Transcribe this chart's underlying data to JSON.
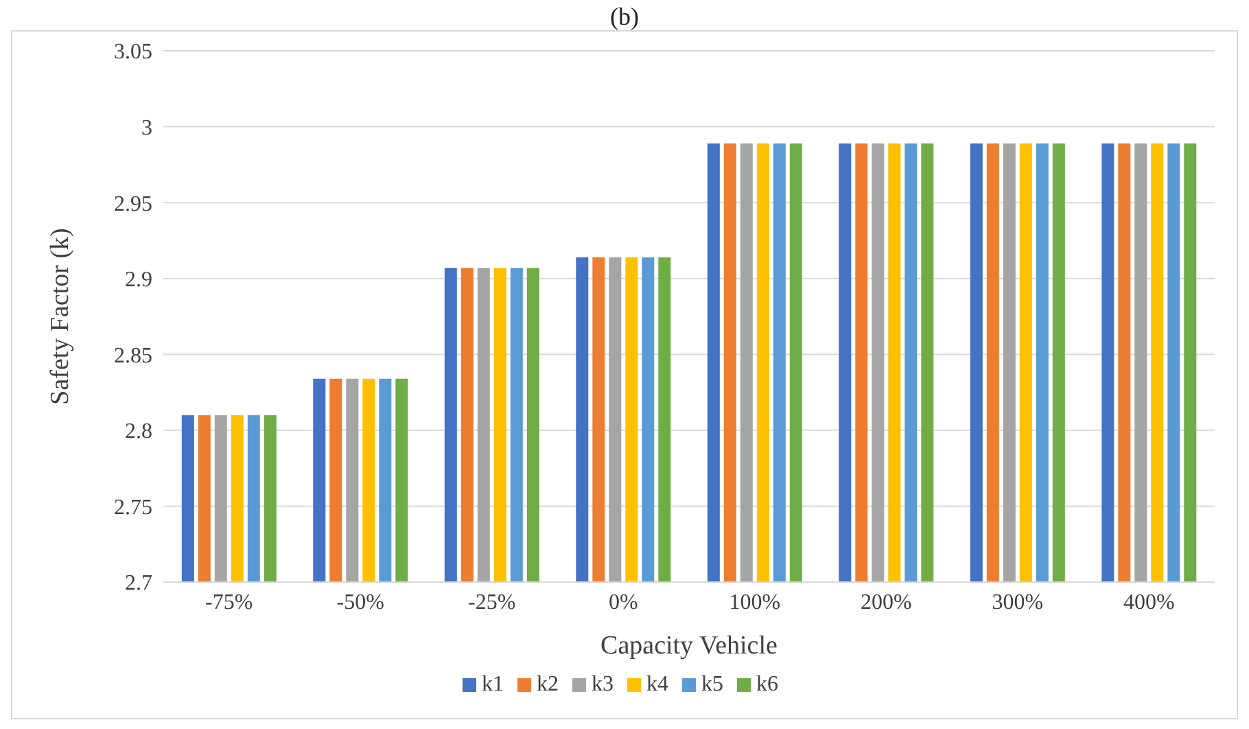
{
  "chart_data": {
    "type": "bar",
    "title": "(b)",
    "xlabel": "Capacity Vehicle",
    "ylabel": "Safety Factor (k)",
    "categories": [
      "-75%",
      "-50%",
      "-25%",
      "0%",
      "100%",
      "200%",
      "300%",
      "400%"
    ],
    "series": [
      {
        "name": "k1",
        "color": "#4472c4",
        "values": [
          2.81,
          2.834,
          2.907,
          2.914,
          2.989,
          2.989,
          2.989,
          2.989
        ]
      },
      {
        "name": "k2",
        "color": "#ed7d31",
        "values": [
          2.81,
          2.834,
          2.907,
          2.914,
          2.989,
          2.989,
          2.989,
          2.989
        ]
      },
      {
        "name": "k3",
        "color": "#a5a5a5",
        "values": [
          2.81,
          2.834,
          2.907,
          2.914,
          2.989,
          2.989,
          2.989,
          2.989
        ]
      },
      {
        "name": "k4",
        "color": "#ffc000",
        "values": [
          2.81,
          2.834,
          2.907,
          2.914,
          2.989,
          2.989,
          2.989,
          2.989
        ]
      },
      {
        "name": "k5",
        "color": "#5b9bd5",
        "values": [
          2.81,
          2.834,
          2.907,
          2.914,
          2.989,
          2.989,
          2.989,
          2.989
        ]
      },
      {
        "name": "k6",
        "color": "#70ad47",
        "values": [
          2.81,
          2.834,
          2.907,
          2.914,
          2.989,
          2.989,
          2.989,
          2.989
        ]
      }
    ],
    "ylim": [
      2.7,
      3.05
    ],
    "yticks": [
      2.7,
      2.75,
      2.8,
      2.85,
      2.9,
      2.95,
      3,
      3.05
    ],
    "grid": "y",
    "legend": "bottom"
  }
}
